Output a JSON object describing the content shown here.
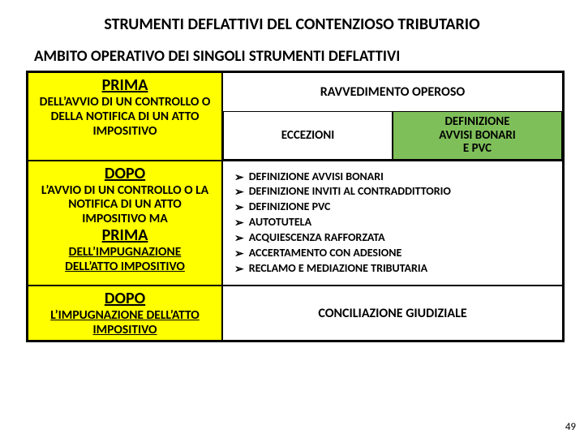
{
  "title": "STRUMENTI DEFLATTIVI DEL CONTENZIOSO TRIBUTARIO",
  "subtitle": "AMBITO OPERATIVO DEI SINGOLI STRUMENTI DEFLATTIVI",
  "left": {
    "r1_big": "PRIMA",
    "r1_body": "DELL’AVVIO DI UN CONTROLLO O DELLA NOTIFICA DI UN ATTO IMPOSITIVO",
    "r2_big1": "DOPO",
    "r2_body1": "L’AVVIO DI UN CONTROLLO O LA NOTIFICA DI UN ATTO IMPOSITIVO MA",
    "r2_big2": "PRIMA",
    "r2_body2a": "DELL’IMPUGNAZIONE",
    "r2_body2b": "DELL’ATTO IMPOSITIVO",
    "r3_big": "DOPO",
    "r3_body": "L’IMPUGNAZIONE DELL’ATTO IMPOSITIVO"
  },
  "right": {
    "r1_top": "RAVVEDIMENTO OPEROSO",
    "r1_left": "ECCEZIONI",
    "r1_right_l1": "DEFINIZIONE",
    "r1_right_l2": "AVVISI BONARI",
    "r1_right_l3": "E PVC",
    "bullets": [
      "DEFINIZIONE AVVISI BONARI",
      "DEFINIZIONE INVITI AL CONTRADDITTORIO",
      "DEFINIZIONE PVC",
      "AUTOTUTELA",
      "ACQUIESCENZA RAFFORZATA",
      "ACCERTAMENTO CON ADESIONE",
      "RECLAMO E MEDIAZIONE TRIBUTARIA"
    ],
    "r3": "CONCILIAZIONE GIUDIZIALE"
  },
  "colors": {
    "yellow": "#ffff00",
    "green": "#7fbf5a",
    "white": "#ffffff",
    "border": "#000000"
  },
  "page_number": "49"
}
